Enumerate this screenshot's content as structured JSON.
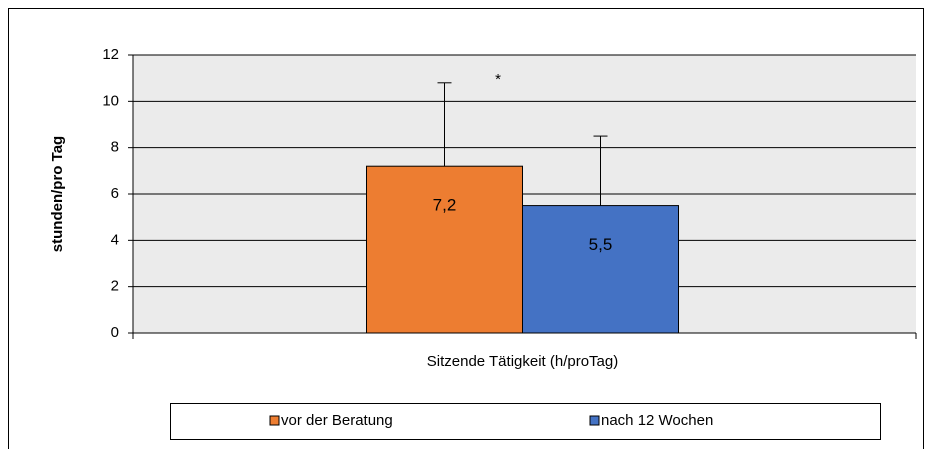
{
  "chart_data": {
    "type": "bar",
    "y_label": "stunden/pro Tag",
    "annotation": "*",
    "categories": [
      "Sitzende Tätigkeit (h/proTag)"
    ],
    "series": [
      {
        "name": "vor der Beratung",
        "color": "#ed7d31",
        "values": [
          7.2
        ],
        "value_labels": [
          "7,2"
        ],
        "errors": [
          3.6
        ]
      },
      {
        "name": "nach 12 Wochen",
        "color": "#4472c4",
        "values": [
          5.5
        ],
        "value_labels": [
          "5,5"
        ],
        "errors": [
          3.0
        ]
      }
    ],
    "ylim": [
      0,
      12
    ],
    "yticks": [
      0,
      2,
      4,
      6,
      8,
      10,
      12
    ],
    "grid": true,
    "legend": "bottom"
  }
}
